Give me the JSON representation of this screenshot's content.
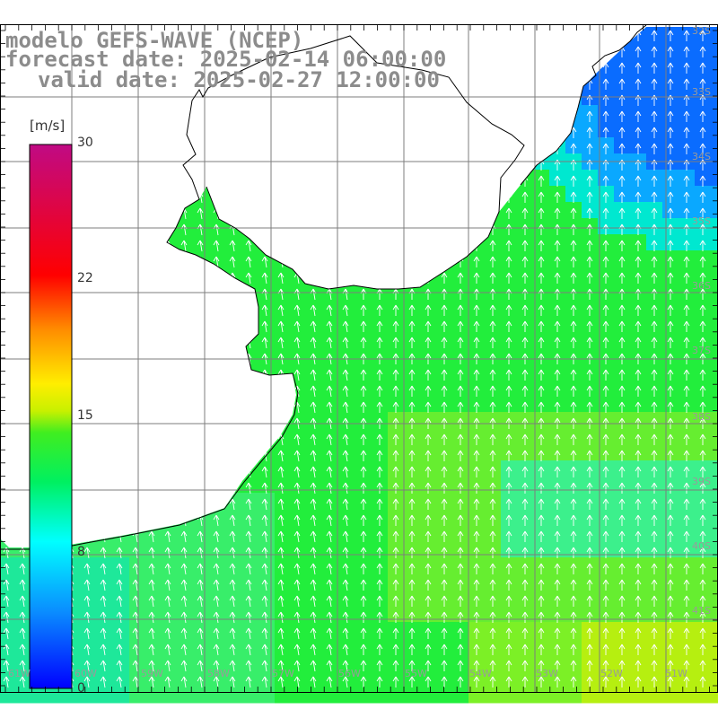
{
  "header": {
    "model": "modelo GEFS-WAVE (NCEP)",
    "forecast_date": "forecast date: 2025-02-14 06:00:00",
    "valid_date": "valid date: 2025-02-27 12:00:00"
  },
  "colorbar": {
    "unit": "[m/s]",
    "ticks": [
      "30",
      "22",
      "15",
      "8",
      "0"
    ],
    "min": 0,
    "max": 30
  },
  "grid_labels": {
    "lat": [
      "32S",
      "33S",
      "34S",
      "35S",
      "36S",
      "37S",
      "38S",
      "39S",
      "40S",
      "41S"
    ],
    "lon": [
      "61W",
      "60W",
      "59W",
      "58W",
      "57W",
      "56W",
      "55W",
      "54W",
      "53W",
      "52W",
      "51W"
    ]
  },
  "colors": {
    "land": "#ffffff",
    "grid": "#7d7d7d",
    "coast": "#000000",
    "arrow": "#ffffff",
    "title": "#8c8c8c"
  }
}
